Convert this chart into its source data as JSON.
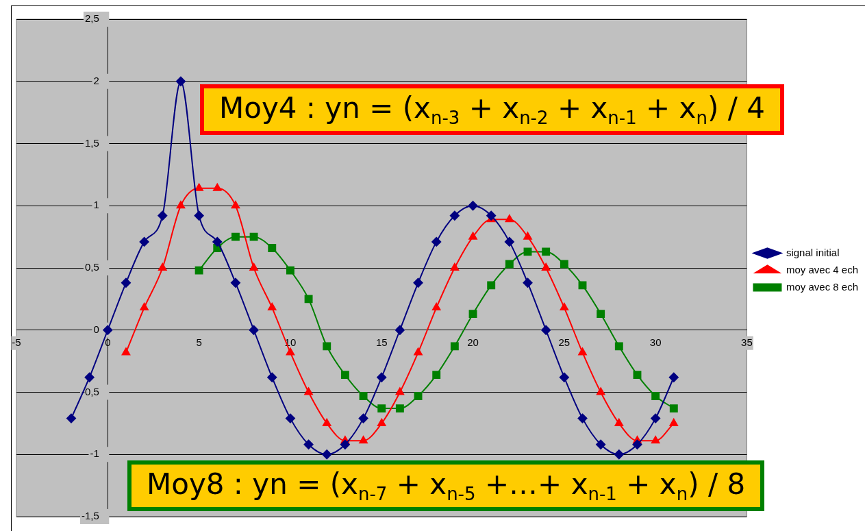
{
  "chart_data": {
    "type": "line",
    "xlim": [
      -5,
      35
    ],
    "xticks": [
      -5,
      0,
      5,
      10,
      15,
      20,
      25,
      30,
      35
    ],
    "ylim": [
      -1.5,
      2.5
    ],
    "yticks": [
      {
        "value": -1.5,
        "label": "-1,5"
      },
      -1,
      {
        "value": -0.5,
        "label": "-0,5"
      },
      0,
      {
        "value": 0.5,
        "label": "0,5"
      },
      1,
      {
        "value": 1.5,
        "label": "1,5"
      },
      2,
      {
        "value": 2.5,
        "label": "2,5"
      }
    ],
    "grid": "y",
    "legend": "right",
    "line_style": "solid",
    "annotations": [
      "Moy4  : yn = (x$_{n-3}$ + x$_{n-2}$ + x$_{n-1}$ + x$_{n}$) / 4",
      "Moy8  : yn = (x$_{n-7}$ + x$_{n-5}$ +…+ x$_{n-1}$ + x$_{n}$) / 8"
    ],
    "series": [
      {
        "name": "signal initial",
        "color": "#000080",
        "marker": "diamond",
        "x": [
          -2,
          -1,
          0,
          1,
          2,
          3,
          4,
          5,
          6,
          7,
          8,
          9,
          10,
          11,
          12,
          13,
          14,
          15,
          16,
          17,
          18,
          19,
          20,
          21,
          22,
          23,
          24,
          25,
          26,
          27,
          28,
          29,
          30,
          31
        ],
        "values": [
          -0.71,
          -0.38,
          0,
          0.38,
          0.71,
          0.92,
          2,
          0.92,
          0.71,
          0.38,
          0,
          -0.38,
          -0.71,
          -0.92,
          -1,
          -0.92,
          -0.71,
          -0.38,
          0,
          0.38,
          0.71,
          0.92,
          1,
          0.92,
          0.71,
          0.38,
          0,
          -0.38,
          -0.71,
          -0.92,
          -1,
          -0.92,
          -0.71,
          -0.38
        ]
      },
      {
        "name": "moy avec 4 ech",
        "color": "#ff0000",
        "marker": "triangle",
        "x": [
          1,
          2,
          3,
          4,
          5,
          6,
          7,
          8,
          9,
          10,
          11,
          12,
          13,
          14,
          15,
          16,
          17,
          18,
          19,
          20,
          21,
          22,
          23,
          24,
          25,
          26,
          27,
          28,
          29,
          30,
          31
        ],
        "values": [
          -0.18,
          0.18,
          0.5,
          1,
          1.14,
          1.14,
          1,
          0.5,
          0.18,
          -0.18,
          -0.5,
          -0.75,
          -0.89,
          -0.89,
          -0.75,
          -0.5,
          -0.18,
          0.18,
          0.5,
          0.75,
          0.89,
          0.89,
          0.75,
          0.5,
          0.18,
          -0.18,
          -0.5,
          -0.75,
          -0.89,
          -0.89,
          -0.75
        ]
      },
      {
        "name": "moy avec 8 ech",
        "color": "#008000",
        "marker": "square",
        "x": [
          5,
          6,
          7,
          8,
          9,
          10,
          11,
          12,
          13,
          14,
          15,
          16,
          17,
          18,
          19,
          20,
          21,
          22,
          23,
          24,
          25,
          26,
          27,
          28,
          29,
          30,
          31
        ],
        "values": [
          0.48,
          0.66,
          0.75,
          0.75,
          0.66,
          0.48,
          0.25,
          -0.13,
          -0.36,
          -0.53,
          -0.63,
          -0.63,
          -0.53,
          -0.36,
          -0.13,
          0.13,
          0.36,
          0.53,
          0.63,
          0.63,
          0.53,
          0.36,
          0.13,
          -0.13,
          -0.36,
          -0.53,
          -0.63
        ]
      }
    ]
  }
}
